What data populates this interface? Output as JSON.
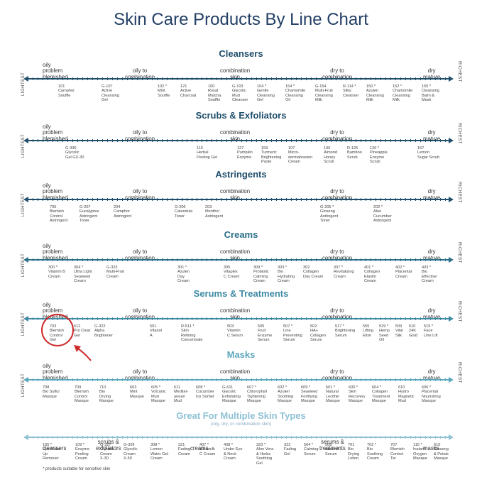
{
  "title": "Skin Care Products By Line Chart",
  "colors": {
    "title": "#233f66",
    "sections": [
      "#1f4e6b",
      "#1f4e6b",
      "#1f4e6b",
      "#2a6e87",
      "#3e8aa3",
      "#5ba6bd",
      "#8ec1d4"
    ],
    "circle": "#cf2b2b"
  },
  "side_labels": {
    "left": "LIGHTEST",
    "right": "RICHEST"
  },
  "skin_types": {
    "oily": "oily\nproblem\nblemished",
    "oily_combo": "oily to\ncombination",
    "combo": "combination\nskin",
    "dry_combo": "dry to\ncombination",
    "dry": "dry\nmature"
  },
  "sections": [
    {
      "title": "Cleansers",
      "products": [
        "101\nCamphor\nSouffle",
        "G-107\nActive\nCleansing\nGel",
        "102 *\nMint\nSouffle",
        "121\nActive\nCharcoal",
        "100\nRoyal\nMatcha\nSouffle",
        "G-103\nGlycolic\nMud\nCleanser",
        "104 *\nGentle\nCleansing\nGel",
        "154 *\nChamomile\nCleansing\nOil",
        "G-154\nMulti-Fruit\nCleansing\nMilk",
        "R-114 *\nSilky\nCleanser",
        "150 *\nAzulen\nCleansing\nMilk",
        "152 *\nChamomile\nCleansing\nMilk",
        "155 *\nCleansing\nBalm &\nMask"
      ]
    },
    {
      "title": "Scrubs & Exfoliators",
      "products": [
        "G-330\nGlycolic\nGel GX-30",
        "110\nHerbal\nPeeling Gel",
        "127\nPumpkin\nEnzyme",
        "159\nTurmeric\nBrightening\nPaste",
        "107\nMicro-\ndermabrasion\nCream",
        "106\nAlmond\nHoney\nScrub",
        "R-125\nBamboo\nScrub",
        "120 *\nPineapple\nEnzyme\nScrub",
        "157\nLemon\nSugar Scrub"
      ]
    },
    {
      "title": "Astringents",
      "products": [
        "705\nBlemish\nControl\nAstringent",
        "G-207\nEucalyptus\nAstringent\nToner",
        "204\nCamphor\nAstringent",
        "G-206\nCalendula\nToner",
        "203\nMenthol\nAstringent",
        "G-205 *\nGinseng\nAstringent\nToner",
        "202 *\nAloe\nCucumber\nAstringent"
      ]
    },
    {
      "title": "Creams",
      "products": [
        "300 *\nVitamin B\nCream",
        "304 *\nUltra Light\nSeaweed\nCream",
        "G-323\nMulti-Fruit\nCream",
        "301 *\nAzulen\nDay\nCream",
        "305\nVitaplex\nC Cream",
        "309 *\nProbiotic\nCalming\nCream",
        "303 *\nBio\nHydrating\nCream",
        "302\nCollagen\nDay Cream",
        "307 *\nRevitalizing\nCream",
        "401 *\nCollagen\nElastin\nCream",
        "402 *\nPlacental\nCream",
        "403 *\nBio\nEffective\nCream"
      ]
    },
    {
      "title": "Serums & Treatments",
      "products": [
        "703\nBlemish\nControl\nGel",
        "512\nPro Clear\nGel",
        "G-322\nAlpha\nBrightener",
        "501\nVitanol\nA",
        "R-511 *\nSkin\nRefining\nConcentrate",
        "503\nVitamin\nC Serum",
        "505\nFruit\nEnzyme\nSerum",
        "507 *\nLine\nPreventing\nSerum",
        "502\nHA+\nCollagen\nSerum",
        "517 *\nBrightening\nSerum",
        "555\nLifting\nElixir",
        "529 *\nHemp\nSeed\nOil",
        "509\nVital\nSilk",
        "510\n24K\nGold",
        "515 *\nFace\nLine Lift"
      ]
    },
    {
      "title": "Masks",
      "products": [
        "708\nBio Sulfur\nMasque",
        "709\nBlemish\nControl\nMasque",
        "710\nBio\nDrying\nMasque",
        "603\nMint\nMasque",
        "605 *\nVolcanic\nMud\nMasque",
        "611\nMediter-\nanean\nMud",
        "608 *\nCucumber\nIce Sorbet",
        "G-611\nGlycolic\nExfoliating\nMasque",
        "607 *\nChlorophyll\nTightening\nMasque",
        "602 *\nAzulen\nSoothing\nMasque",
        "609 *\nSeaweed\nFortifying\nMasque",
        "601 *\nNatural\nLecithin\nMasque",
        "600 *\nSkin\nRecovery\nMasque",
        "604 *\nCollagen\nTreatment\nMasque",
        "610\nHydro\nMagnetic\nMud",
        "606 *\nPlacental\nNourishing\nMasque"
      ]
    },
    {
      "title": "Great For Multiple Skin Types",
      "subtitle": "(oily, dry, or combination skin)",
      "categories": [
        "cleansers",
        "scrubs &\nexfoliators",
        "creams",
        "serums &\ntreatments",
        "masks"
      ],
      "products": [
        "105 *\nEye Make\nUp\nRemover",
        "109 *\nEnzyme\nPeeling\nCream",
        "G-327\nGlycolic\nCream\nX-30",
        "G-329\nGlycolic\nCream\nX-50",
        "308 *\nLemon\nWater Gel\nCream",
        "321\nFading\nCream",
        "407 *\nMicrosilk\nC Cream",
        "408 *\nUnder Eye\n& Neck\nCream",
        "323 *\nAloe Vera\n& Herbs\nSoothing\nGel",
        "322\nFading\nGel",
        "504 *\nCalming\nSerum",
        "508\nAlmond\nSerum",
        "701\nBio\nDrying\nLotion",
        "702 *\nBio\nSoothing\nCream",
        "707\nBlemish\nControl\nTar",
        "115 *\nInstant\nOxygen\nMasque",
        "610\nGinseng\n& Petals\nMasque"
      ]
    }
  ],
  "footnote": "* products suitable for sensitive skin"
}
